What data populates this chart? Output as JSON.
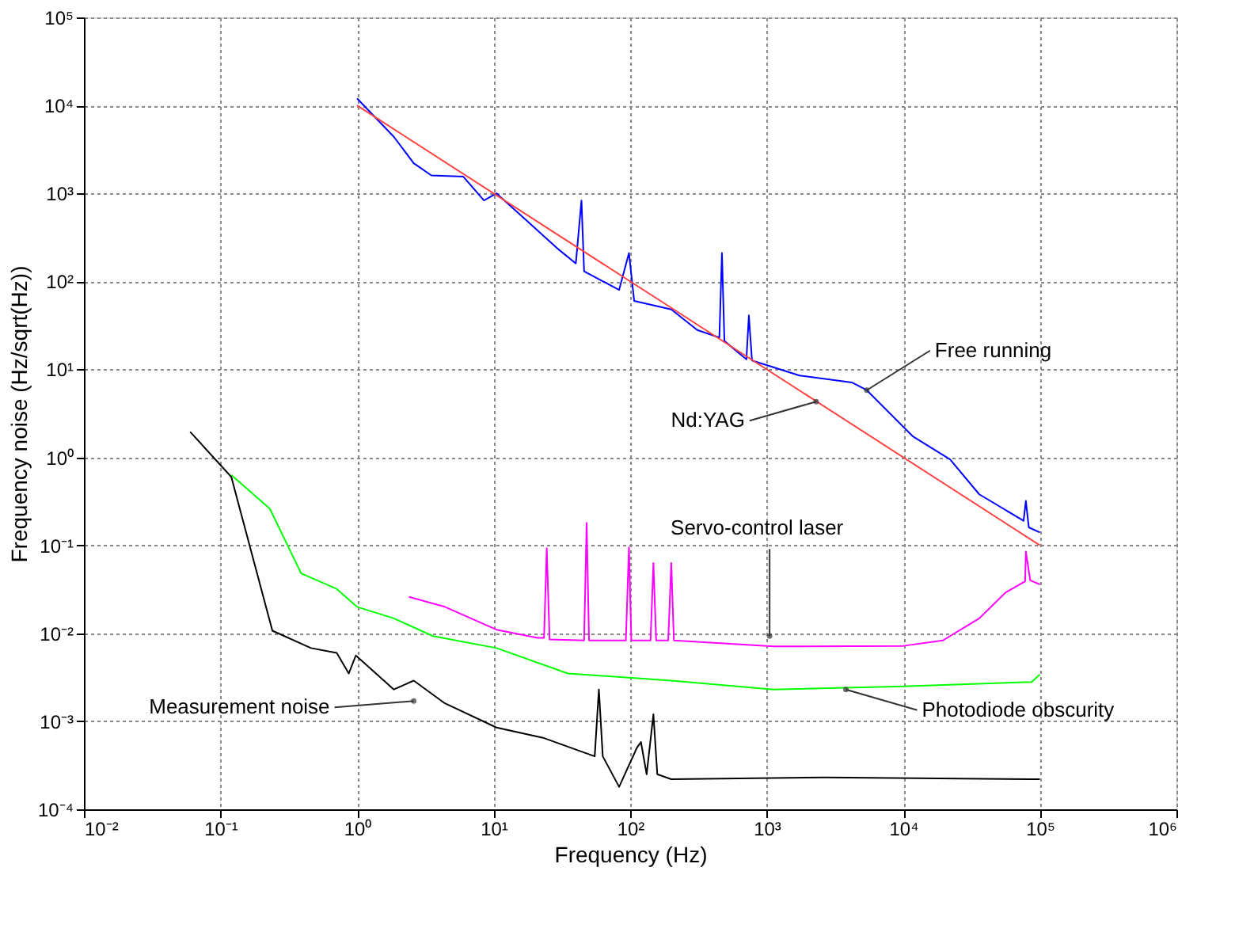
{
  "chart_data": {
    "type": "line",
    "xlabel": "Frequency (Hz)",
    "ylabel": "Frequency noise (Hz/sqrt(Hz))",
    "log": "xy",
    "grid": true,
    "xlim": [
      0.01,
      1000000
    ],
    "ylim": [
      0.0001,
      100000
    ],
    "xticks": [
      {
        "value": 0.01,
        "label": "10⁻²"
      },
      {
        "value": 0.1,
        "label": "10⁻¹"
      },
      {
        "value": 1,
        "label": "10⁰"
      },
      {
        "value": 10,
        "label": "10¹"
      },
      {
        "value": 100,
        "label": "10²"
      },
      {
        "value": 1000,
        "label": "10³"
      },
      {
        "value": 10000,
        "label": "10⁴"
      },
      {
        "value": 100000,
        "label": "10⁵"
      },
      {
        "value": 1000000,
        "label": "10⁶"
      }
    ],
    "yticks": [
      {
        "value": 0.0001,
        "label": "10⁻⁴"
      },
      {
        "value": 0.001,
        "label": "10⁻³"
      },
      {
        "value": 0.01,
        "label": "10⁻²"
      },
      {
        "value": 0.1,
        "label": "10⁻¹"
      },
      {
        "value": 1,
        "label": "10⁰"
      },
      {
        "value": 10,
        "label": "10¹"
      },
      {
        "value": 100,
        "label": "10²"
      },
      {
        "value": 1000,
        "label": "10³"
      },
      {
        "value": 10000,
        "label": "10⁴"
      },
      {
        "value": 100000,
        "label": "10⁵"
      }
    ],
    "series": [
      {
        "color": "#0000ff",
        "x": [
          1,
          1.86,
          2.6,
          3.5,
          6.0,
          8.5,
          10.5,
          17,
          30,
          40,
          44,
          46,
          83,
          98,
          107,
          200,
          310,
          450,
          470,
          490,
          710,
          740,
          780,
          1740,
          4200,
          5400,
          11700,
          22000,
          36000,
          76000,
          79000,
          83000,
          100000
        ],
        "values": [
          12000,
          4400,
          2200,
          1600,
          1550,
          830,
          1000,
          510,
          230,
          160,
          830,
          130,
          80,
          210,
          60,
          48,
          28,
          23,
          210,
          21,
          13,
          41,
          12.6,
          8.5,
          7.1,
          5.8,
          1.74,
          0.95,
          0.38,
          0.19,
          0.32,
          0.16,
          0.14
        ]
      },
      {
        "color": "#ff4040",
        "x": [
          1,
          100000
        ],
        "values": [
          10000,
          0.1
        ]
      },
      {
        "color": "#ff00ff",
        "x": [
          2.4,
          4.4,
          10.5,
          21,
          23.4,
          24.5,
          25.7,
          46,
          48,
          50,
          93,
          98,
          102,
          141,
          148,
          155,
          190,
          200,
          209,
          1120,
          10000,
          19500,
          36000,
          56000,
          78000,
          79000,
          85000,
          100000
        ],
        "values": [
          0.026,
          0.02,
          0.011,
          0.0089,
          0.0089,
          0.093,
          0.0085,
          0.0083,
          0.18,
          0.0083,
          0.0083,
          0.095,
          0.0083,
          0.0083,
          0.063,
          0.0083,
          0.0083,
          0.063,
          0.0083,
          0.0071,
          0.0072,
          0.0083,
          0.0148,
          0.029,
          0.039,
          0.085,
          0.04,
          0.036
        ]
      },
      {
        "color": "#00ff00",
        "x": [
          0.12,
          0.23,
          0.39,
          0.71,
          1,
          1.86,
          3.6,
          10.5,
          35,
          200,
          1120,
          10000,
          87000,
          100000
        ],
        "values": [
          0.63,
          0.26,
          0.048,
          0.032,
          0.02,
          0.0148,
          0.0093,
          0.0068,
          0.0035,
          0.0029,
          0.0023,
          0.0025,
          0.0028,
          0.0034
        ]
      },
      {
        "color": "#000000",
        "x": [
          0.06,
          0.12,
          0.24,
          0.46,
          0.71,
          0.87,
          0.98,
          1.86,
          2.6,
          4.4,
          10.5,
          23,
          55,
          59,
          63,
          83,
          112,
          120,
          132,
          148,
          158,
          200,
          2700,
          87000,
          100000
        ],
        "values": [
          1.95,
          0.6,
          0.0107,
          0.0068,
          0.006,
          0.0035,
          0.0056,
          0.0023,
          0.0029,
          0.0016,
          0.00085,
          0.00065,
          0.0004,
          0.0023,
          0.0004,
          0.00018,
          0.0005,
          0.00058,
          0.00025,
          0.0012,
          0.00025,
          0.00022,
          0.00023,
          0.00022,
          0.00022
        ]
      }
    ],
    "annotations": [
      {
        "text": "Free running",
        "x": 5400,
        "y": 5.8
      },
      {
        "text": "Nd:YAG",
        "x": 2300,
        "y": 4.3
      },
      {
        "text": "Servo-control laser",
        "x": 1050,
        "y": 0.0093
      },
      {
        "text": "Photodiode obscurity",
        "x": 3800,
        "y": 0.0023
      },
      {
        "text": "Measurement noise",
        "x": 2.6,
        "y": 0.0017
      }
    ]
  }
}
